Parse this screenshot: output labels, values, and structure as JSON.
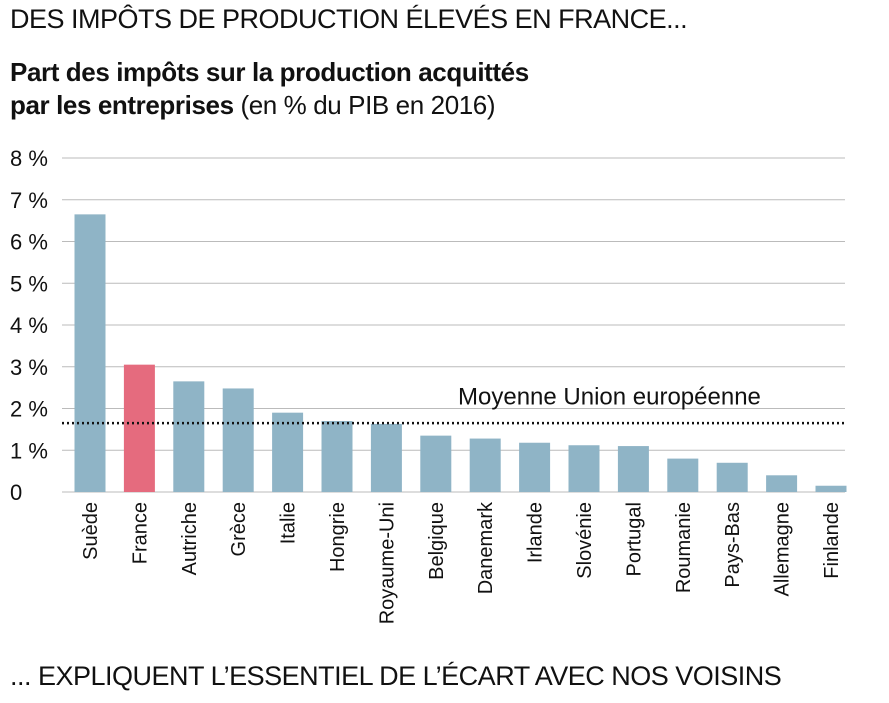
{
  "header": {
    "top_heading": "DES IMPÔTS DE PRODUCTION ÉLEVÉS EN FRANCE...",
    "title_bold_line1": "Part des impôts sur la production acquittés",
    "title_bold_line2": "par les entreprises",
    "title_suffix": "(en % du PIB en 2016)"
  },
  "footer": {
    "bottom_heading": "... EXPLIQUENT L’ESSENTIEL DE L’ÉCART AVEC NOS VOISINS"
  },
  "chart_data": {
    "type": "bar",
    "title": "Part des impôts sur la production acquittés par les entreprises (en % du PIB en 2016)",
    "categories": [
      "Suède",
      "France",
      "Autriche",
      "Grèce",
      "Italie",
      "Hongrie",
      "Royaume-Uni",
      "Belgique",
      "Danemark",
      "Irlande",
      "Slovénie",
      "Portugal",
      "Roumanie",
      "Pays-Bas",
      "Allemagne",
      "Finlande"
    ],
    "values": [
      6.65,
      3.05,
      2.65,
      2.48,
      1.9,
      1.7,
      1.63,
      1.35,
      1.28,
      1.18,
      1.12,
      1.1,
      0.8,
      0.7,
      0.4,
      0.15
    ],
    "highlight_category": "France",
    "colors": {
      "default": "#8fb4c6",
      "highlight": "#e56b7e",
      "grid": "#bbbbbb",
      "reference_line": "#111111"
    },
    "ylim": [
      0,
      8
    ],
    "yticks": [
      0,
      1,
      2,
      3,
      4,
      5,
      6,
      7,
      8
    ],
    "ytick_labels": [
      "0",
      "1 %",
      "2 %",
      "3 %",
      "4 %",
      "5 %",
      "6 %",
      "7 %",
      "8 %"
    ],
    "grid": true,
    "reference_line": {
      "label": "Moyenne Union européenne",
      "value": 1.65,
      "style": "dotted"
    }
  }
}
